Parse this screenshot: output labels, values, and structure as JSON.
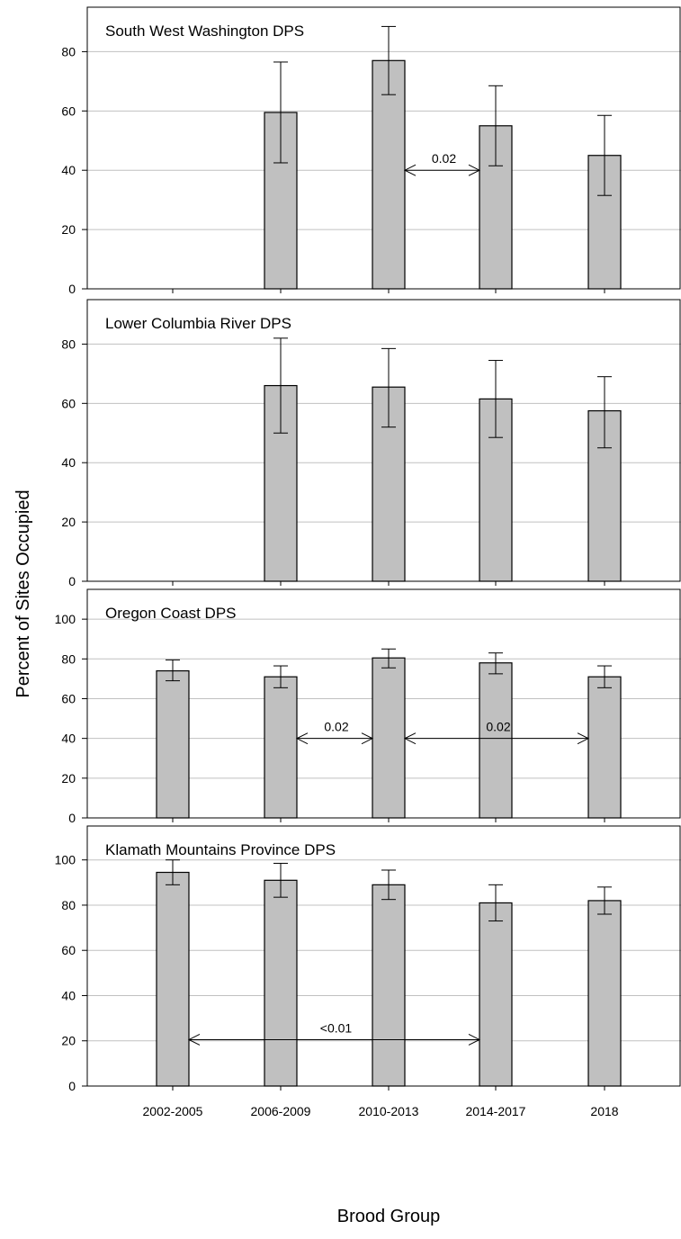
{
  "figure": {
    "ylabel": "Percent of Sites Occupied",
    "xlabel": "Brood Group",
    "categories": [
      "2002-2005",
      "2006-2009",
      "2010-2013",
      "2014-2017",
      "2018"
    ]
  },
  "chart_data": [
    {
      "type": "bar",
      "title": "South West Washington DPS",
      "categories": [
        "2002-2005",
        "2006-2009",
        "2010-2013",
        "2014-2017",
        "2018"
      ],
      "values": [
        null,
        59.5,
        77,
        55,
        45
      ],
      "error_low": [
        null,
        42.5,
        65.5,
        41.5,
        31.5
      ],
      "error_high": [
        null,
        76.5,
        88.5,
        68.5,
        58.5
      ],
      "ylim": [
        0,
        95
      ],
      "yticks": [
        0,
        20,
        40,
        60,
        80
      ],
      "annotations": [
        {
          "text": "0.02",
          "from": "2010-2013",
          "to": "2014-2017",
          "y": 40
        }
      ]
    },
    {
      "type": "bar",
      "title": "Lower Columbia River DPS",
      "categories": [
        "2002-2005",
        "2006-2009",
        "2010-2013",
        "2014-2017",
        "2018"
      ],
      "values": [
        null,
        66,
        65.5,
        61.5,
        57.5
      ],
      "error_low": [
        null,
        50,
        52,
        48.5,
        45
      ],
      "error_high": [
        null,
        82,
        78.5,
        74.5,
        69
      ],
      "ylim": [
        0,
        95
      ],
      "yticks": [
        0,
        20,
        40,
        60,
        80
      ],
      "annotations": []
    },
    {
      "type": "bar",
      "title": "Oregon Coast DPS",
      "categories": [
        "2002-2005",
        "2006-2009",
        "2010-2013",
        "2014-2017",
        "2018"
      ],
      "values": [
        74,
        71,
        80.5,
        78,
        71
      ],
      "error_low": [
        69,
        65.5,
        75.5,
        72.5,
        65.5
      ],
      "error_high": [
        79.5,
        76.5,
        85,
        83,
        76.5
      ],
      "ylim": [
        0,
        115
      ],
      "yticks": [
        0,
        20,
        40,
        60,
        80,
        100
      ],
      "annotations": [
        {
          "text": "0.02",
          "from": "2006-2009",
          "to": "2010-2013",
          "y": 40
        },
        {
          "text": "0.02",
          "from": "2010-2013",
          "to": "2018",
          "y": 40
        }
      ]
    },
    {
      "type": "bar",
      "title": "Klamath Mountains Province DPS",
      "categories": [
        "2002-2005",
        "2006-2009",
        "2010-2013",
        "2014-2017",
        "2018"
      ],
      "values": [
        94.5,
        91,
        89,
        81,
        82
      ],
      "error_low": [
        89,
        83.5,
        82.5,
        73,
        76
      ],
      "error_high": [
        100,
        98.5,
        95.5,
        89,
        88
      ],
      "ylim": [
        0,
        115
      ],
      "yticks": [
        0,
        20,
        40,
        60,
        80,
        100
      ],
      "annotations": [
        {
          "text": "<0.01",
          "from": "2002-2005",
          "to": "2014-2017",
          "y": 20.5
        }
      ]
    }
  ]
}
